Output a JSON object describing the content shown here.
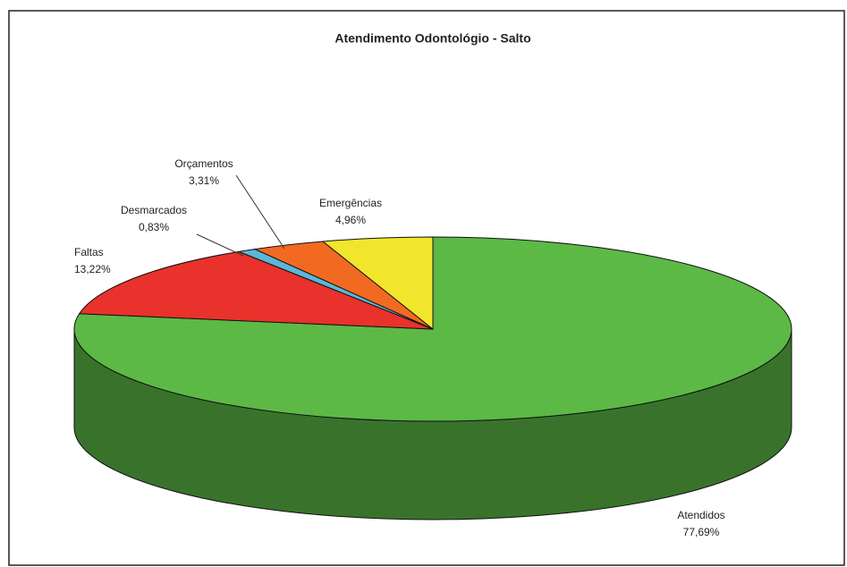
{
  "chart_data": {
    "type": "pie",
    "title": "Atendimento Odontológio - Salto",
    "categories": [
      "Atendidos",
      "Faltas",
      "Desmarcados",
      "Orçamentos",
      "Emergências"
    ],
    "values": [
      77.69,
      13.22,
      0.83,
      3.31,
      4.96
    ],
    "value_labels": [
      "77,69%",
      "13,22%",
      "0,83%",
      "3,31%",
      "4,96%"
    ],
    "colors": [
      "#5cb946",
      "#e8322b",
      "#5bb7d9",
      "#f26a22",
      "#f2e62c"
    ]
  }
}
